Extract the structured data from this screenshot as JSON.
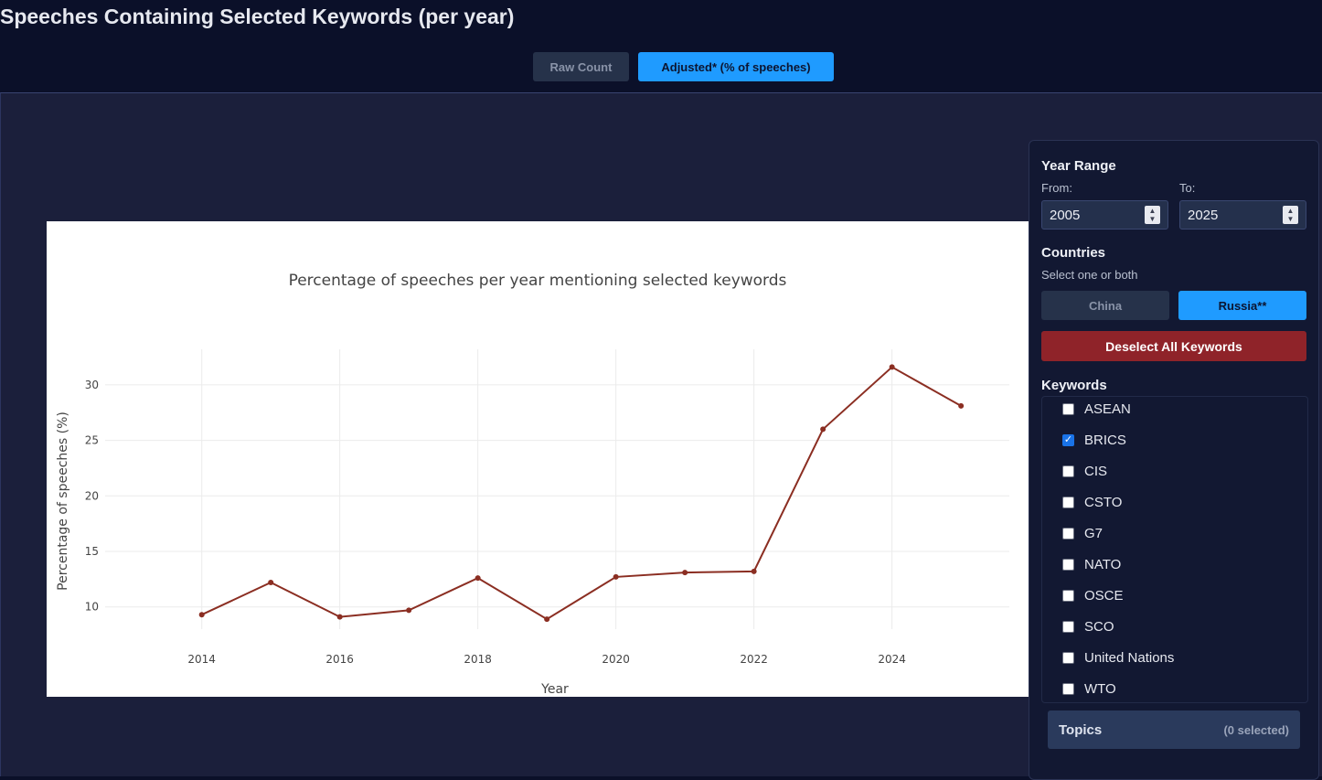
{
  "page": {
    "title": "Speeches Containing Selected Keywords (per year)"
  },
  "mode_toggle": {
    "raw_label": "Raw Count",
    "adjusted_label": "Adjusted* (% of speeches)",
    "active": "adjusted"
  },
  "sidebar": {
    "year_range": {
      "title": "Year Range",
      "from_label": "From:",
      "to_label": "To:",
      "from_value": "2005",
      "to_value": "2025"
    },
    "countries": {
      "title": "Countries",
      "hint": "Select one or both",
      "china_label": "China",
      "russia_label": "Russia**",
      "selected": [
        "Russia**"
      ]
    },
    "deselect_label": "Deselect All Keywords",
    "keywords": {
      "title": "Keywords",
      "items": [
        {
          "label": "ASEAN",
          "checked": false
        },
        {
          "label": "BRICS",
          "checked": true
        },
        {
          "label": "CIS",
          "checked": false
        },
        {
          "label": "CSTO",
          "checked": false
        },
        {
          "label": "G7",
          "checked": false
        },
        {
          "label": "NATO",
          "checked": false
        },
        {
          "label": "OSCE",
          "checked": false
        },
        {
          "label": "SCO",
          "checked": false
        },
        {
          "label": "United Nations",
          "checked": false
        },
        {
          "label": "WTO",
          "checked": false
        }
      ]
    },
    "topics": {
      "label": "Topics",
      "count": "(0 selected)"
    }
  },
  "colors": {
    "line": "#8b2e22",
    "accent": "#1f9bff",
    "danger": "#8f2329"
  },
  "chart_data": {
    "type": "line",
    "title": "Percentage of speeches per year mentioning selected keywords",
    "xlabel": "Year",
    "ylabel": "Percentage of speeches (%)",
    "x": [
      2014,
      2015,
      2016,
      2017,
      2018,
      2019,
      2020,
      2021,
      2022,
      2023,
      2024,
      2025
    ],
    "y": [
      9.3,
      12.2,
      9.1,
      9.7,
      12.6,
      8.9,
      12.7,
      13.1,
      13.2,
      26.0,
      31.6,
      28.1
    ],
    "xticks": [
      2014,
      2016,
      2018,
      2020,
      2022,
      2024
    ],
    "yticks": [
      10,
      15,
      20,
      25,
      30
    ],
    "xlim": [
      2012.6,
      2025.7
    ],
    "ylim": [
      8.0,
      33.2
    ],
    "grid": true,
    "legend": "none"
  }
}
